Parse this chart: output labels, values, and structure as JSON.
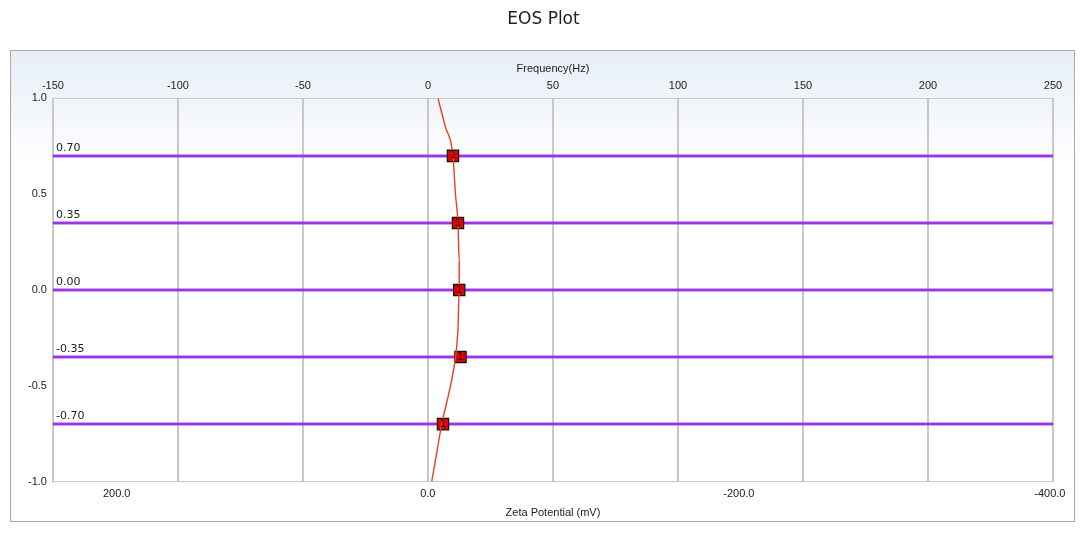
{
  "chart_data": {
    "type": "line",
    "title": "EOS Plot",
    "xlabel": "Frequency(Hz)",
    "x2label": "Zeta Potential (mV)",
    "xlim": [
      -150,
      250
    ],
    "xticks": [
      -150,
      -100,
      -50,
      0,
      50,
      100,
      150,
      200,
      250
    ],
    "x2lim": [
      241,
      -402
    ],
    "x2ticks": [
      {
        "value": 200,
        "label": "200.0"
      },
      {
        "value": 0,
        "label": "0.0"
      },
      {
        "value": -200,
        "label": "-200.0"
      },
      {
        "value": -400,
        "label": "-400.0"
      }
    ],
    "ylim": [
      -1,
      1
    ],
    "yticks": [
      {
        "value": -1,
        "label": "-1.0"
      },
      {
        "value": -0.5,
        "label": "-0.5"
      },
      {
        "value": 0,
        "label": "0.0"
      },
      {
        "value": 0.5,
        "label": "0.5"
      },
      {
        "value": 1,
        "label": "1.0"
      }
    ],
    "grid": "x",
    "legend": false,
    "series": [
      {
        "color": "#e8401c",
        "marker": "none",
        "x": [
          4,
          7,
          10,
          11,
          12,
          12.5,
          12.5,
          12,
          11,
          9,
          5.5,
          3.5,
          1.5
        ],
        "values": [
          1,
          0.85,
          0.7,
          0.5,
          0.35,
          0.15,
          0,
          -0.2,
          -0.35,
          -0.5,
          -0.7,
          -0.85,
          -1
        ]
      },
      {
        "type": "scatter",
        "color": "#e00000",
        "marker": "square",
        "x": [
          10,
          12,
          12.5,
          13,
          6
        ],
        "values": [
          0.7,
          0.35,
          0,
          -0.35,
          -0.7
        ]
      }
    ],
    "annotations": [
      {
        "text": "1",
        "x": 10,
        "y": 0.7
      },
      {
        "text": "1",
        "x": 12,
        "y": 0.35
      },
      {
        "text": "1",
        "x": 12.5,
        "y": 0
      },
      {
        "text": "1",
        "x": 13,
        "y": -0.35
      },
      {
        "text": "1",
        "x": 6,
        "y": -0.7
      }
    ],
    "ref_lines": [
      {
        "axis": "y",
        "value": 0.7,
        "label": "0.70",
        "color": "#9933ee"
      },
      {
        "axis": "y",
        "value": 0.35,
        "label": "0.35",
        "color": "#9933ee"
      },
      {
        "axis": "y",
        "value": 0,
        "label": "0.00",
        "color": "#9933ee"
      },
      {
        "axis": "y",
        "value": -0.35,
        "label": "-0.35",
        "color": "#9933ee"
      },
      {
        "axis": "y",
        "value": -0.7,
        "label": "-0.70",
        "color": "#9933ee"
      }
    ]
  }
}
